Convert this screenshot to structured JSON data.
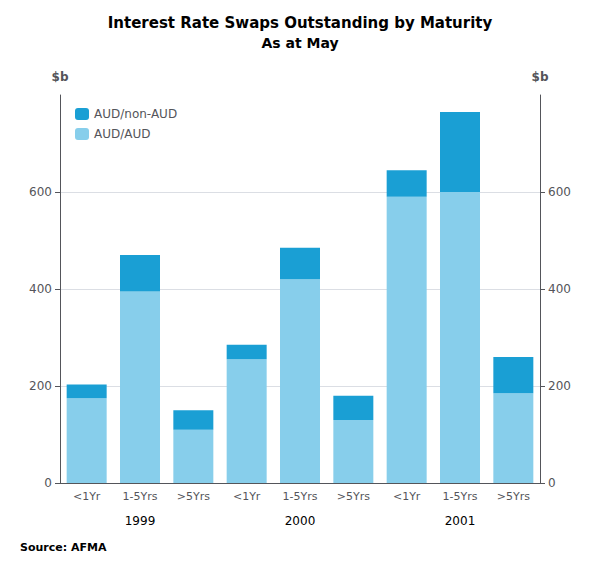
{
  "chart_data": {
    "type": "bar",
    "title": "Interest Rate Swaps Outstanding by Maturity",
    "subtitle": "As at May",
    "source": "Source: AFMA",
    "categories": [
      "<1Yr",
      "1-5Yrs",
      ">5Yrs",
      "<1Yr",
      "1-5Yrs",
      ">5Yrs",
      "<1Yr",
      "1-5Yrs",
      ">5Yrs"
    ],
    "groups": [
      "1999",
      "2000",
      "2001"
    ],
    "series": [
      {
        "name": "AUD/AUD",
        "color": "#87ceeb",
        "values": [
          175,
          395,
          110,
          255,
          420,
          130,
          590,
          600,
          185
        ]
      },
      {
        "name": "AUD/non-AUD",
        "color": "#1a9fd4",
        "values": [
          28,
          75,
          40,
          30,
          65,
          50,
          55,
          165,
          75
        ]
      }
    ],
    "stacked": true,
    "y_label": "$b",
    "y2_label": "$b",
    "ylim": [
      0,
      800
    ],
    "yticks": [
      0,
      200,
      400,
      600
    ],
    "y2lim": [
      0,
      800
    ],
    "y2ticks": [
      0,
      200,
      400,
      600
    ],
    "grid": true,
    "legend": "upper left"
  }
}
